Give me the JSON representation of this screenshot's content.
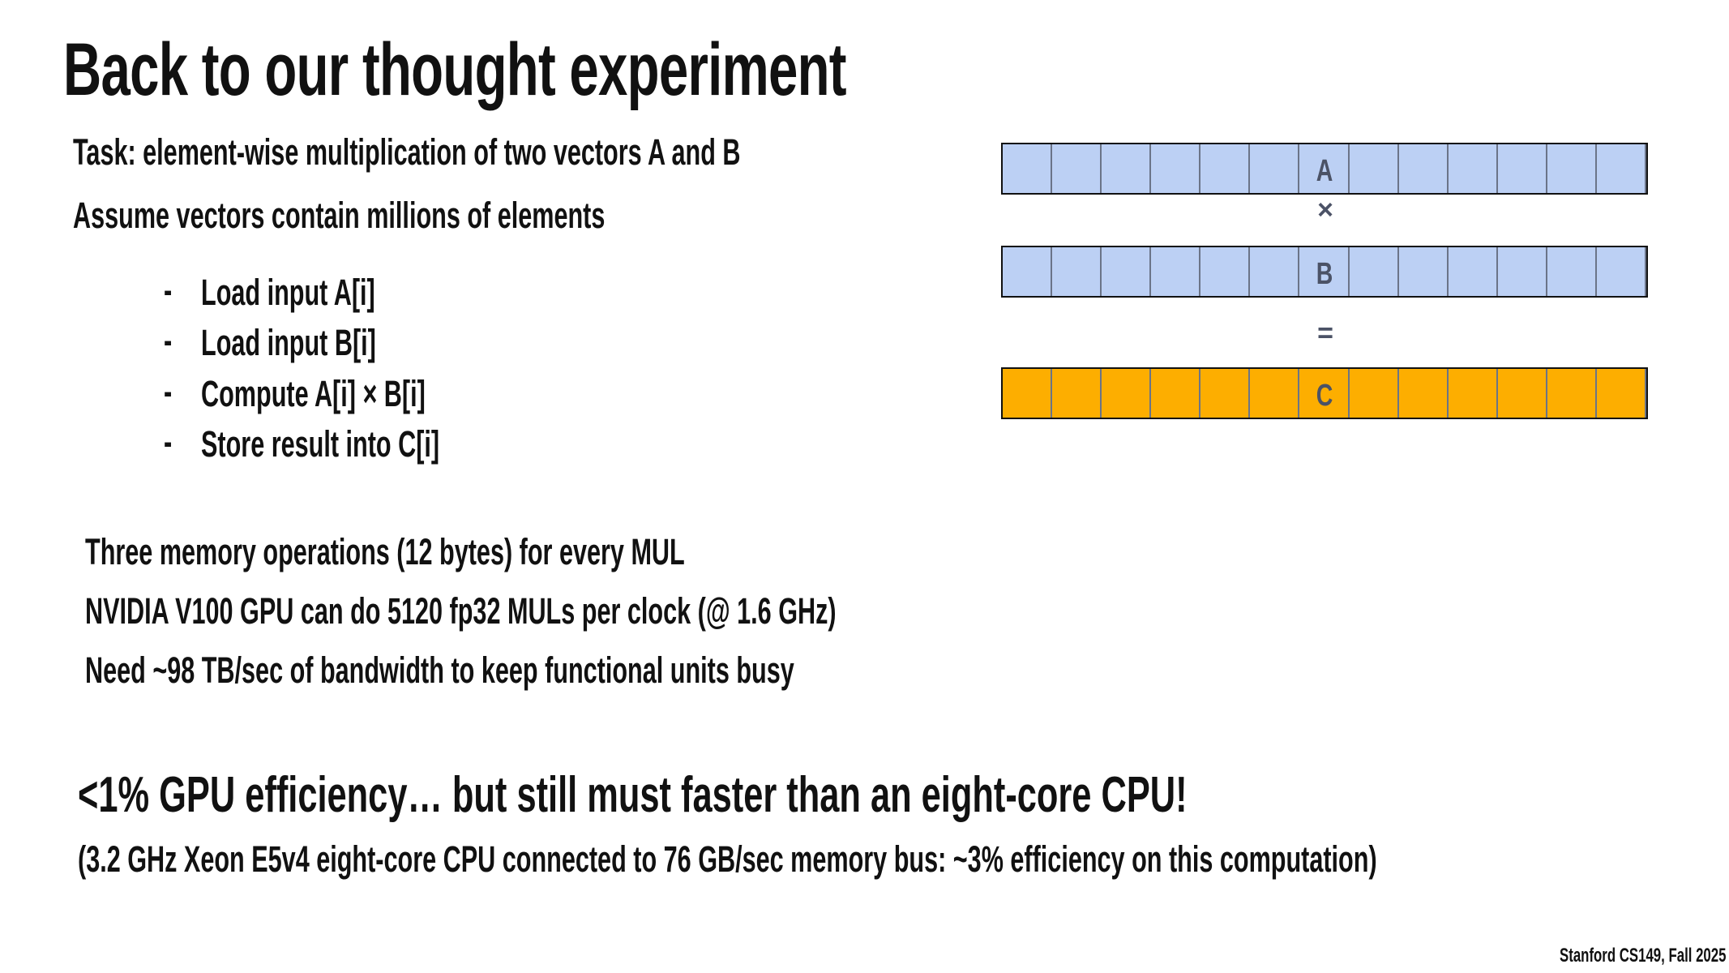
{
  "title": "Back to our thought experiment",
  "task": "Task: element-wise multiplication of two vectors A and B",
  "assume": "Assume vectors contain millions of elements",
  "bullets": [
    {
      "dash": "-",
      "text": "Load input A[i]"
    },
    {
      "dash": "-",
      "text": "Load input B[i]"
    },
    {
      "dash": "-",
      "text": "Compute A[i] × B[i]"
    },
    {
      "dash": "-",
      "text": "Store result into C[i]"
    }
  ],
  "facts": [
    "Three memory operations (12 bytes) for every MUL",
    "NVIDIA V100 GPU can do 5120 fp32 MULs per clock (@ 1.6 GHz)",
    "Need ~98 TB/sec of bandwidth to keep functional units busy"
  ],
  "conclusion": "<1% GPU efficiency… but still must faster than an eight-core CPU!",
  "note": "(3.2 GHz Xeon E5v4 eight-core CPU connected to 76 GB/sec memory bus: ~3% efficiency on this computation)",
  "footer": "Stanford CS149, Fall 2025",
  "diagram": {
    "cells_per_vector": 13,
    "vector_a": "A",
    "times": "×",
    "vector_b": "B",
    "equals": "=",
    "vector_c": "C",
    "colors": {
      "input": "#bcd0f4",
      "output": "#fdae00",
      "label": "#4b5266"
    }
  }
}
